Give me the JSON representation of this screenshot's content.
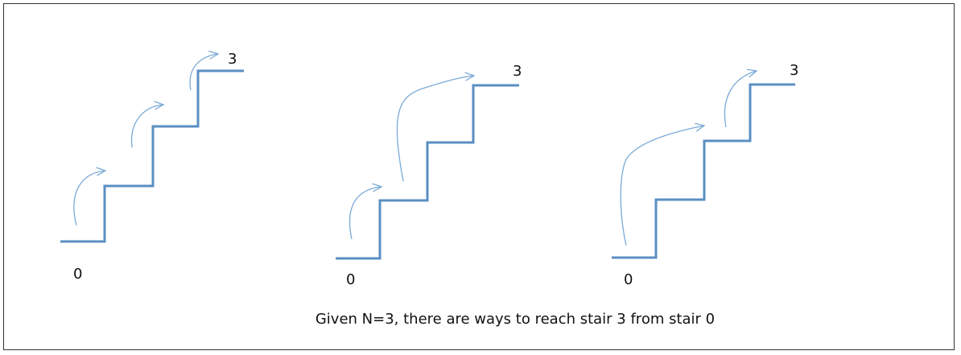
{
  "colors": {
    "stair": "#5a8fc3",
    "arrow": "#7aaad6",
    "border": "#333333",
    "text": "#111111"
  },
  "stairs": [
    {
      "start_label": "0",
      "end_label": "3",
      "jumps": [
        1,
        1,
        1
      ]
    },
    {
      "start_label": "0",
      "end_label": "3",
      "jumps": [
        1,
        2
      ]
    },
    {
      "start_label": "0",
      "end_label": "3",
      "jumps": [
        2,
        1
      ]
    }
  ],
  "caption": "Given N=3, there are ways to reach stair 3 from stair 0"
}
